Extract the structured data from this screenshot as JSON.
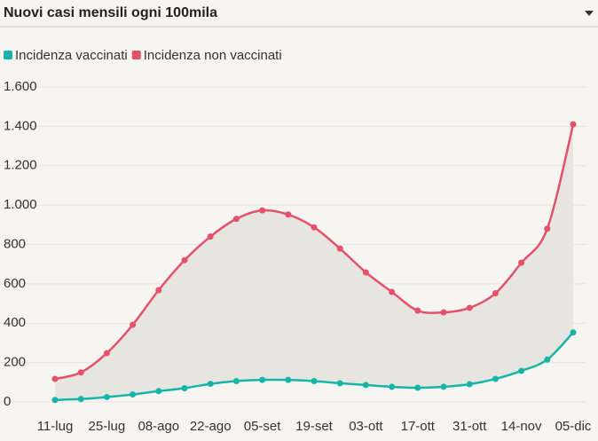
{
  "chart_data": {
    "type": "line",
    "title": "Nuovi casi mensili ogni 100mila",
    "categories": [
      "11-lug",
      null,
      "25-lug",
      null,
      "08-ago",
      null,
      "22-ago",
      null,
      "05-set",
      null,
      "19-set",
      null,
      "03-ott",
      null,
      "17-ott",
      null,
      "31-ott",
      null,
      "14-nov",
      null,
      "05-dic"
    ],
    "series": [
      {
        "name": "Incidenza vaccinati",
        "color": "#17b5a9",
        "values": [
          10,
          15,
          25,
          38,
          55,
          70,
          92,
          106,
          112,
          112,
          106,
          95,
          86,
          77,
          72,
          77,
          90,
          117,
          158,
          215,
          353
        ]
      },
      {
        "name": "Incidenza non vaccinati",
        "color": "#e5506a",
        "values": [
          117,
          150,
          248,
          392,
          568,
          720,
          840,
          930,
          973,
          952,
          887,
          779,
          658,
          559,
          464,
          455,
          478,
          552,
          707,
          880,
          1410
        ]
      }
    ],
    "ylim": [
      0,
      1600
    ],
    "yticks": [
      0,
      200,
      400,
      600,
      800,
      {
        "value": 1000,
        "label": "1.000"
      },
      {
        "value": 1200,
        "label": "1.200"
      },
      {
        "value": 1400,
        "label": "1.400"
      },
      {
        "value": 1600,
        "label": "1.600"
      }
    ],
    "grid": true,
    "legend": "top-left"
  }
}
